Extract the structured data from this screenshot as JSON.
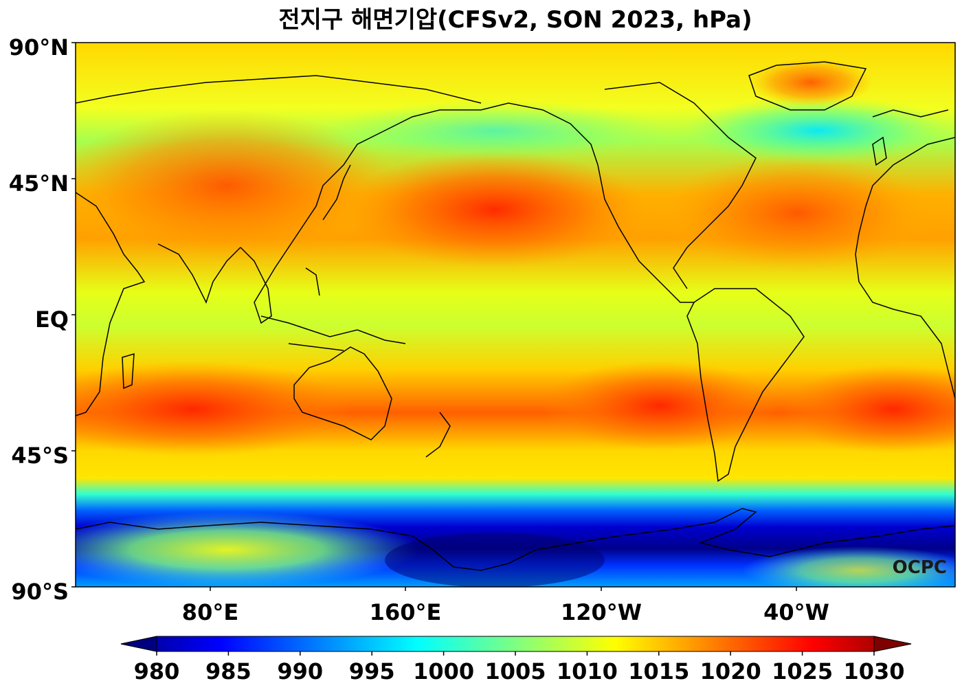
{
  "title": "전지구 해면기압(CFSv2, SON 2023, hPa)",
  "watermark": "OCPC",
  "lat_ticks": [
    "90°N",
    "45°N",
    "EQ",
    "45°S",
    "90°S"
  ],
  "lon_ticks": [
    "80°E",
    "160°E",
    "120°W",
    "40°W"
  ],
  "colorbar": {
    "ticks": [
      "980",
      "985",
      "990",
      "995",
      "1000",
      "1005",
      "1010",
      "1015",
      "1020",
      "1025",
      "1030"
    ],
    "colors": [
      "#00007f",
      "#0000ff",
      "#007fff",
      "#00ffff",
      "#7fff7f",
      "#ffff00",
      "#ff7f00",
      "#ff0000",
      "#7f0000"
    ]
  },
  "map": {
    "projection": "equirectangular",
    "lon_range": [
      24,
      384
    ],
    "lat_range": [
      -90,
      90
    ],
    "central_longitude": 204
  }
}
